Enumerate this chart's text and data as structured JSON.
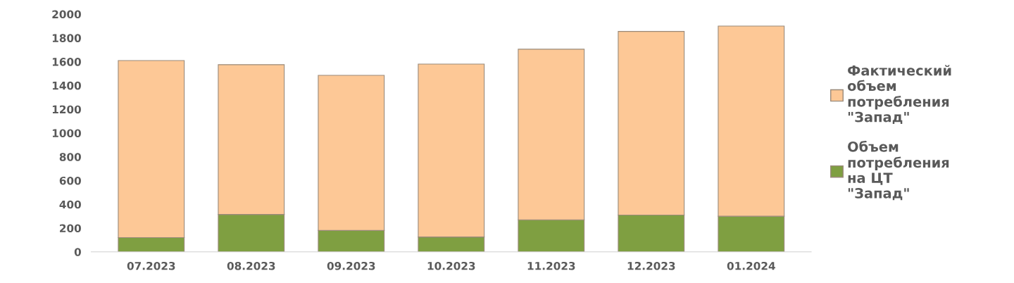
{
  "chart_data": {
    "type": "bar",
    "stacked": true,
    "categories": [
      "07.2023",
      "08.2023",
      "09.2023",
      "10.2023",
      "11.2023",
      "12.2023",
      "01.2024"
    ],
    "series": [
      {
        "name": "Объем потребления на ЦТ \"Запад\"",
        "color": "#7f9f41",
        "values": [
          120,
          315,
          180,
          125,
          270,
          310,
          300
        ]
      },
      {
        "name": "Фактический объем потребления \"Запад\"",
        "color": "#fdc896",
        "values": [
          1490,
          1260,
          1305,
          1455,
          1435,
          1545,
          1600
        ]
      }
    ],
    "ylim": [
      0,
      2000
    ],
    "yticks": [
      0,
      200,
      400,
      600,
      800,
      1000,
      1200,
      1400,
      1600,
      1800,
      2000
    ],
    "grid": false,
    "legend": "right"
  }
}
